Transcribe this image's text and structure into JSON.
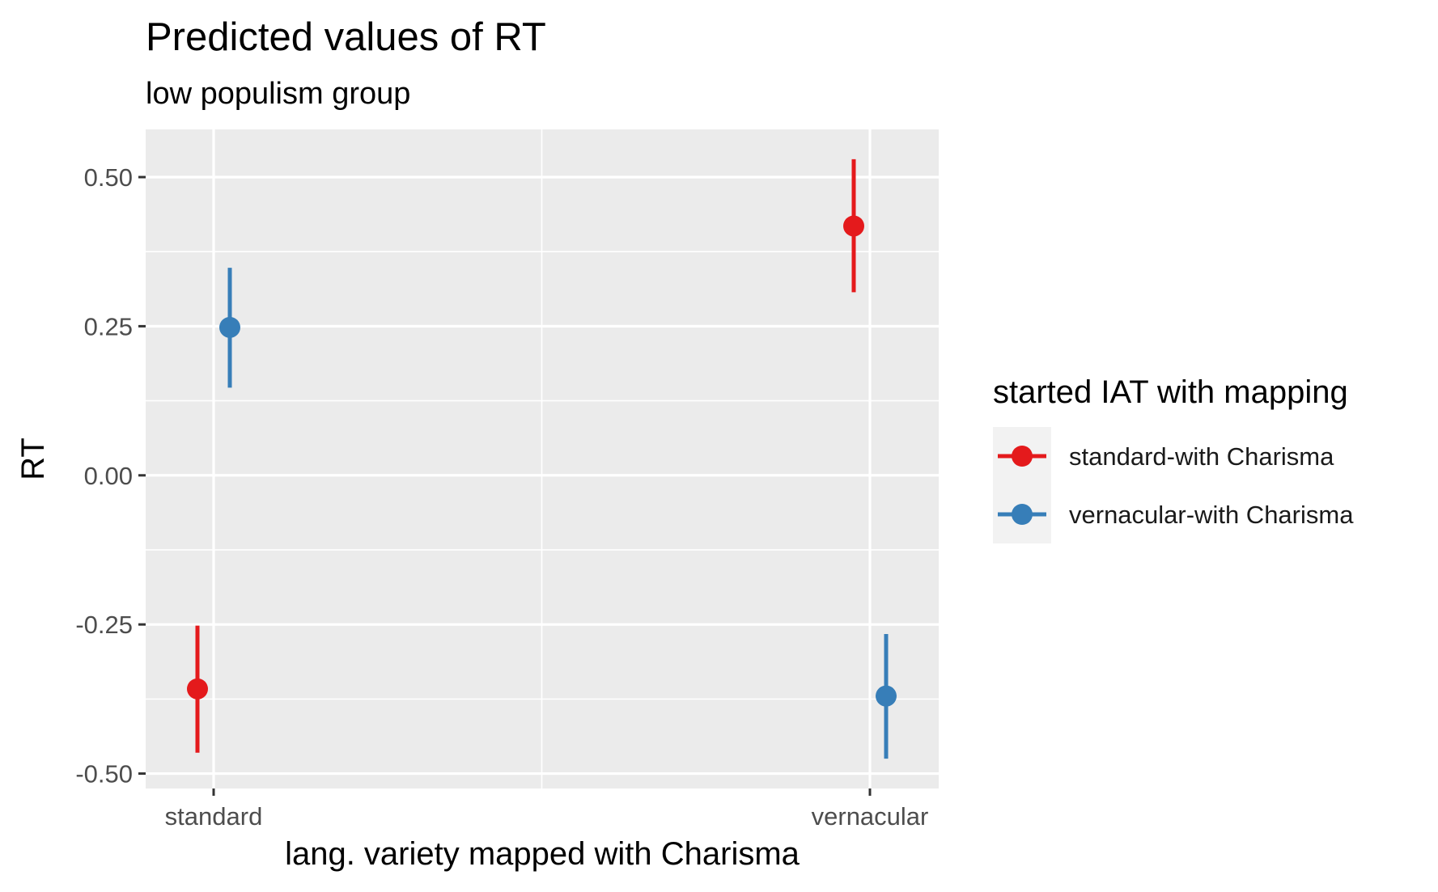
{
  "chart_data": {
    "type": "scatter",
    "title": "Predicted values of RT",
    "subtitle": "low populism group",
    "xlabel": "lang. variety mapped with Charisma",
    "ylabel": "RT",
    "categories": [
      "standard",
      "vernacular"
    ],
    "y_ticks": [
      0.5,
      0.25,
      0.0,
      -0.25,
      -0.5
    ],
    "y_tick_labels": [
      "0.50",
      "0.25",
      "0.00",
      "-0.25",
      "-0.50"
    ],
    "ylim": [
      -0.525,
      0.58
    ],
    "grid": true,
    "legend": {
      "title": "started IAT with mapping",
      "position": "right"
    },
    "series": [
      {
        "name": "standard-with Charisma",
        "color": "#e41a1c",
        "points": [
          {
            "x": "standard",
            "y": -0.358,
            "ci_low": -0.465,
            "ci_high": -0.252
          },
          {
            "x": "vernacular",
            "y": 0.418,
            "ci_low": 0.307,
            "ci_high": 0.53
          }
        ]
      },
      {
        "name": "vernacular-with Charisma",
        "color": "#377eb8",
        "points": [
          {
            "x": "standard",
            "y": 0.248,
            "ci_low": 0.147,
            "ci_high": 0.348
          },
          {
            "x": "vernacular",
            "y": -0.37,
            "ci_low": -0.475,
            "ci_high": -0.266
          }
        ]
      }
    ]
  },
  "colors": {
    "panel_background": "#ebebeb",
    "grid": "#ffffff"
  }
}
